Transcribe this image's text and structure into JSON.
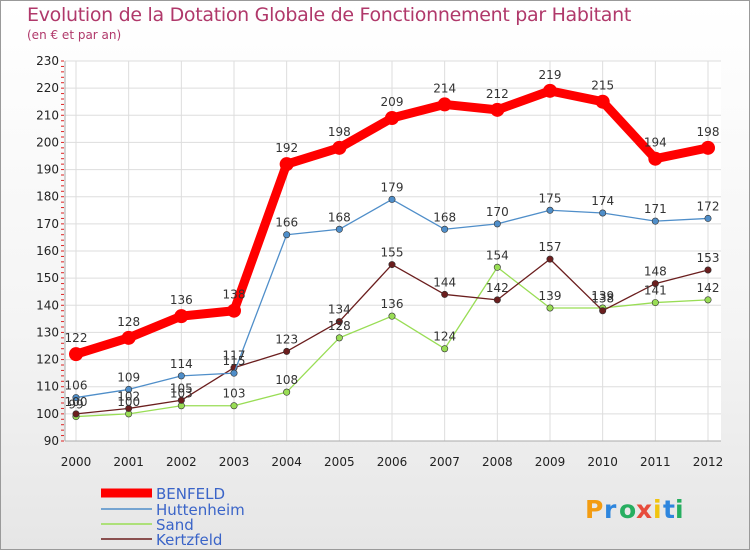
{
  "chart_data": {
    "type": "line",
    "title": "Evolution de la Dotation Globale de Fonctionnement par Habitant",
    "subtitle": "(en € et par an)",
    "categories": [
      "2000",
      "2001",
      "2002",
      "2003",
      "2004",
      "2005",
      "2006",
      "2007",
      "2008",
      "2009",
      "2010",
      "2011",
      "2012"
    ],
    "ylim": [
      90,
      230
    ],
    "yticks": [
      90,
      100,
      110,
      120,
      130,
      140,
      150,
      160,
      170,
      180,
      190,
      200,
      210,
      220,
      230
    ],
    "grid": true,
    "legend": "bottom-left",
    "series": [
      {
        "name": "BENFELD",
        "color": "#ff0000",
        "values": [
          122,
          128,
          136,
          138,
          192,
          198,
          209,
          214,
          212,
          219,
          215,
          194,
          198
        ]
      },
      {
        "name": "Huttenheim",
        "color": "#4f8ec9",
        "values": [
          106,
          109,
          114,
          115,
          166,
          168,
          179,
          168,
          170,
          175,
          174,
          171,
          172
        ]
      },
      {
        "name": "Sand",
        "color": "#99dd55",
        "values": [
          99,
          100,
          103,
          103,
          108,
          128,
          136,
          124,
          154,
          139,
          139,
          141,
          142
        ]
      },
      {
        "name": "Kertzfeld",
        "color": "#6b1e1e",
        "values": [
          100,
          102,
          105,
          117,
          123,
          134,
          155,
          144,
          142,
          157,
          138,
          148,
          153
        ]
      }
    ]
  },
  "logo": {
    "letters": [
      "P",
      "r",
      "o",
      "x",
      "i",
      "t",
      "i"
    ],
    "colors": [
      "#f39c12",
      "#2e86de",
      "#27ae60",
      "#e74c3c",
      "#f1c40f",
      "#2e86de",
      "#27ae60"
    ]
  }
}
